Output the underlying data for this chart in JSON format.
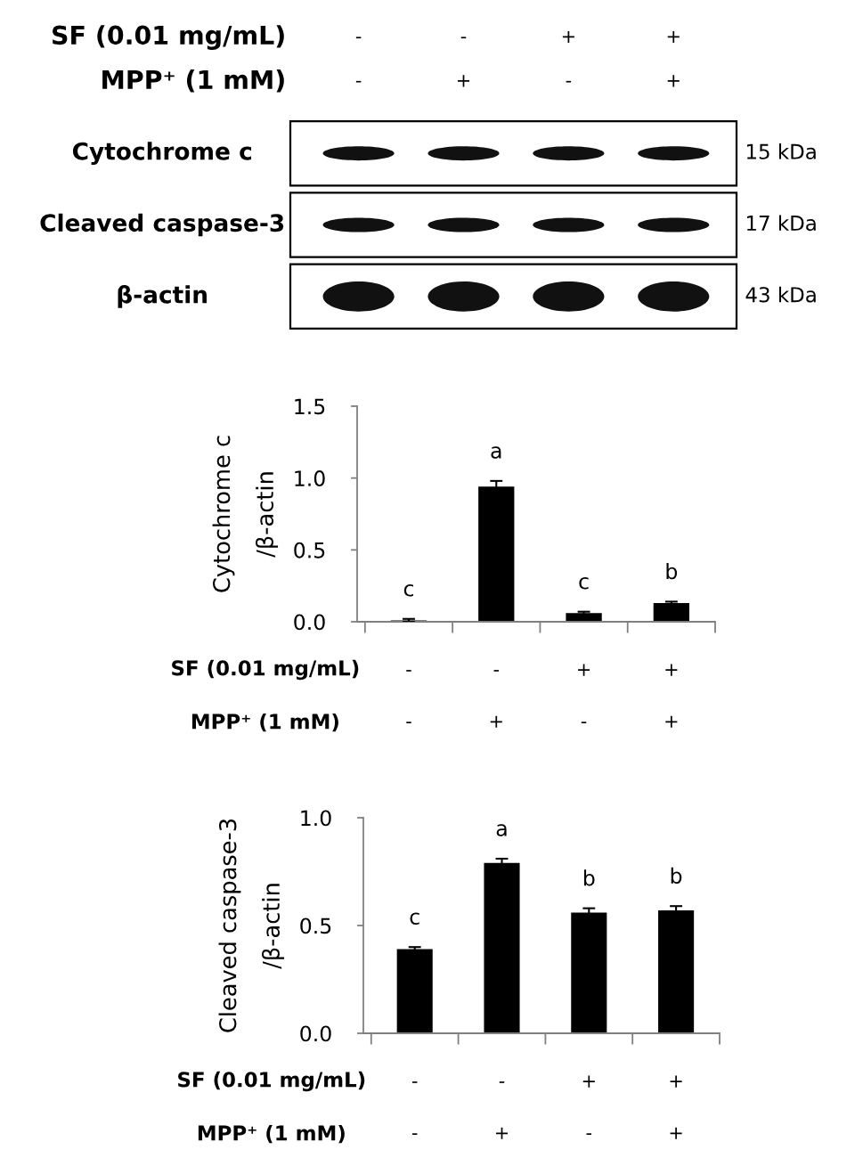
{
  "chart_data": [
    {
      "type": "other",
      "categories": [
        "-\n-",
        "-\n+",
        "+\n-",
        "+\n+"
      ],
      "y_categories": [
        "Cytochrome c",
        "Cleaved caspase-3",
        "β-actin"
      ],
      "y2_categories": [
        "15 kDa",
        "17 kDa",
        "43 kDa"
      ],
      "annotations": [
        "SF (0.01 mg/mL)",
        "MPP⁺ (1 mM)"
      ]
    },
    {
      "type": "bar",
      "ylabel": "Cytochrome c\n/β-actin",
      "categories": [
        "-\n-",
        "-\n+",
        "+\n-",
        "+\n+"
      ],
      "values": [
        0.01,
        0.94,
        0.06,
        0.13
      ],
      "errors": [
        0.01,
        0.04,
        0.01,
        0.01
      ],
      "color": "#000000",
      "ylim": [
        0,
        1.5
      ],
      "yticks": [
        {
          "value": 0,
          "label": "0.0"
        },
        {
          "value": 0.5,
          "label": "0.5"
        },
        {
          "value": 1,
          "label": "1.0"
        },
        {
          "value": 1.5,
          "label": "1.5"
        }
      ],
      "annotations": [
        "SF (0.01 mg/mL)",
        "MPP⁺ (1 mM)",
        "c",
        "a",
        "c",
        "b"
      ]
    },
    {
      "type": "bar",
      "ylabel": "Cleaved caspase-3\n/β-actin",
      "categories": [
        "-\n-",
        "-\n+",
        "+\n-",
        "+\n+"
      ],
      "values": [
        0.39,
        0.79,
        0.56,
        0.57
      ],
      "errors": [
        0.01,
        0.02,
        0.02,
        0.02
      ],
      "color": "#000000",
      "ylim": [
        0,
        1
      ],
      "yticks": [
        {
          "value": 0,
          "label": "0.0"
        },
        {
          "value": 0.5,
          "label": "0.5"
        },
        {
          "value": 1,
          "label": "1.0"
        }
      ],
      "annotations": [
        "SF (0.01 mg/mL)",
        "MPP⁺ (1 mM)",
        "c",
        "a",
        "b",
        "b"
      ]
    }
  ]
}
